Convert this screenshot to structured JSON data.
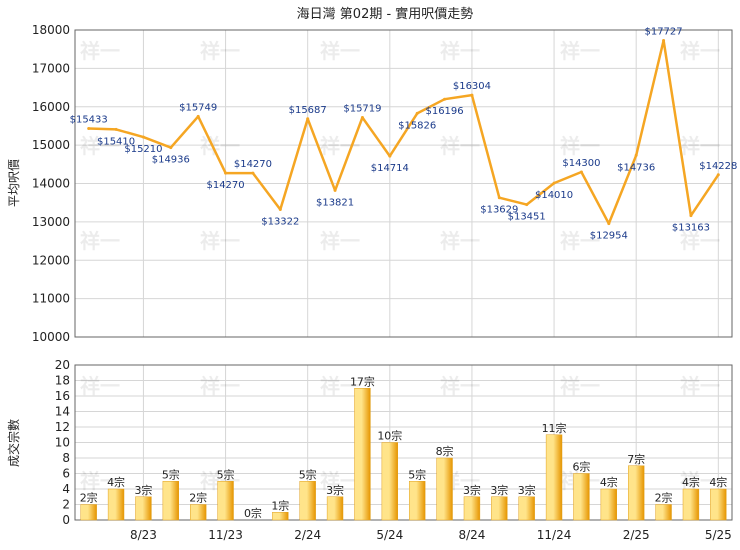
{
  "title": "海日灣 第02期 - 實用呎價走勢",
  "watermark": "祥一",
  "colors": {
    "line": "#F5A623",
    "bar_light": "#FFE48A",
    "bar_dark": "#E69500",
    "grid": "#d6d6d6",
    "axis": "#666666",
    "text": "#222222",
    "label": "#1a3a8a"
  },
  "chart_data": [
    {
      "type": "line",
      "ylabel": "平均呎價",
      "ylim": [
        10000,
        18000
      ],
      "yticks": [
        10000,
        11000,
        12000,
        13000,
        14000,
        15000,
        16000,
        17000,
        18000
      ],
      "grid": true,
      "x_tick_labels": [
        "8/23",
        "11/23",
        "2/24",
        "5/24",
        "8/24",
        "11/24",
        "2/25",
        "5/25"
      ],
      "series": [
        {
          "values": [
            15433,
            15410,
            15210,
            14936,
            15749,
            14270,
            14270,
            13322,
            15687,
            13821,
            15719,
            14714,
            15826,
            16196,
            16304,
            13629,
            13451,
            14010,
            14300,
            12954,
            14736,
            17727,
            13163,
            14228
          ],
          "labels": [
            "$15433",
            "$15410",
            "$15210",
            "$14936",
            "$15749",
            "$14270",
            "$14270",
            "$13322",
            "$15687",
            "$13821",
            "$15719",
            "$14714",
            "$15826",
            "$16196",
            "$16304",
            "$13629",
            "$13451",
            "$14010",
            "$14300",
            "$12954",
            "$14736",
            "$17727",
            "$13163",
            "$14228"
          ]
        }
      ]
    },
    {
      "type": "bar",
      "ylabel": "成交宗數",
      "ylim": [
        0,
        20
      ],
      "yticks": [
        0,
        2,
        4,
        6,
        8,
        10,
        12,
        14,
        16,
        18,
        20
      ],
      "grid": true,
      "x_tick_labels": [
        "8/23",
        "11/23",
        "2/24",
        "5/24",
        "8/24",
        "11/24",
        "2/25",
        "5/25"
      ],
      "values": [
        2,
        4,
        3,
        5,
        2,
        5,
        0,
        1,
        5,
        3,
        17,
        10,
        5,
        8,
        3,
        3,
        3,
        11,
        6,
        4,
        7,
        2,
        4,
        4
      ],
      "labels": [
        "2宗",
        "4宗",
        "3宗",
        "5宗",
        "2宗",
        "5宗",
        "0宗",
        "1宗",
        "5宗",
        "3宗",
        "17宗",
        "10宗",
        "5宗",
        "8宗",
        "3宗",
        "3宗",
        "3宗",
        "11宗",
        "6宗",
        "4宗",
        "7宗",
        "2宗",
        "4宗",
        "4宗"
      ]
    }
  ]
}
